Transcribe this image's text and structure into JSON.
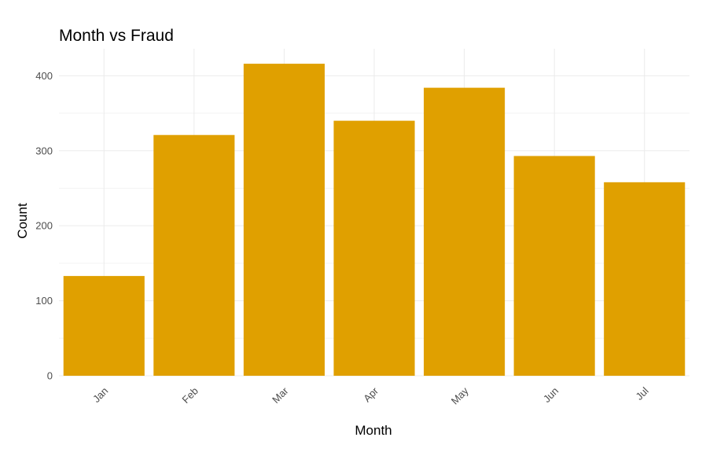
{
  "chart_data": {
    "type": "bar",
    "title": "Month vs Fraud",
    "xlabel": "Month",
    "ylabel": "Count",
    "categories": [
      "Jan",
      "Feb",
      "Mar",
      "Apr",
      "May",
      "Jun",
      "Jul"
    ],
    "values": [
      133,
      321,
      416,
      340,
      384,
      293,
      258
    ],
    "ylim": [
      0,
      436
    ],
    "yticks": [
      0,
      100,
      200,
      300,
      400
    ],
    "bar_color": "#E0A000",
    "grid": true,
    "x_tick_rotation_deg": 45
  }
}
